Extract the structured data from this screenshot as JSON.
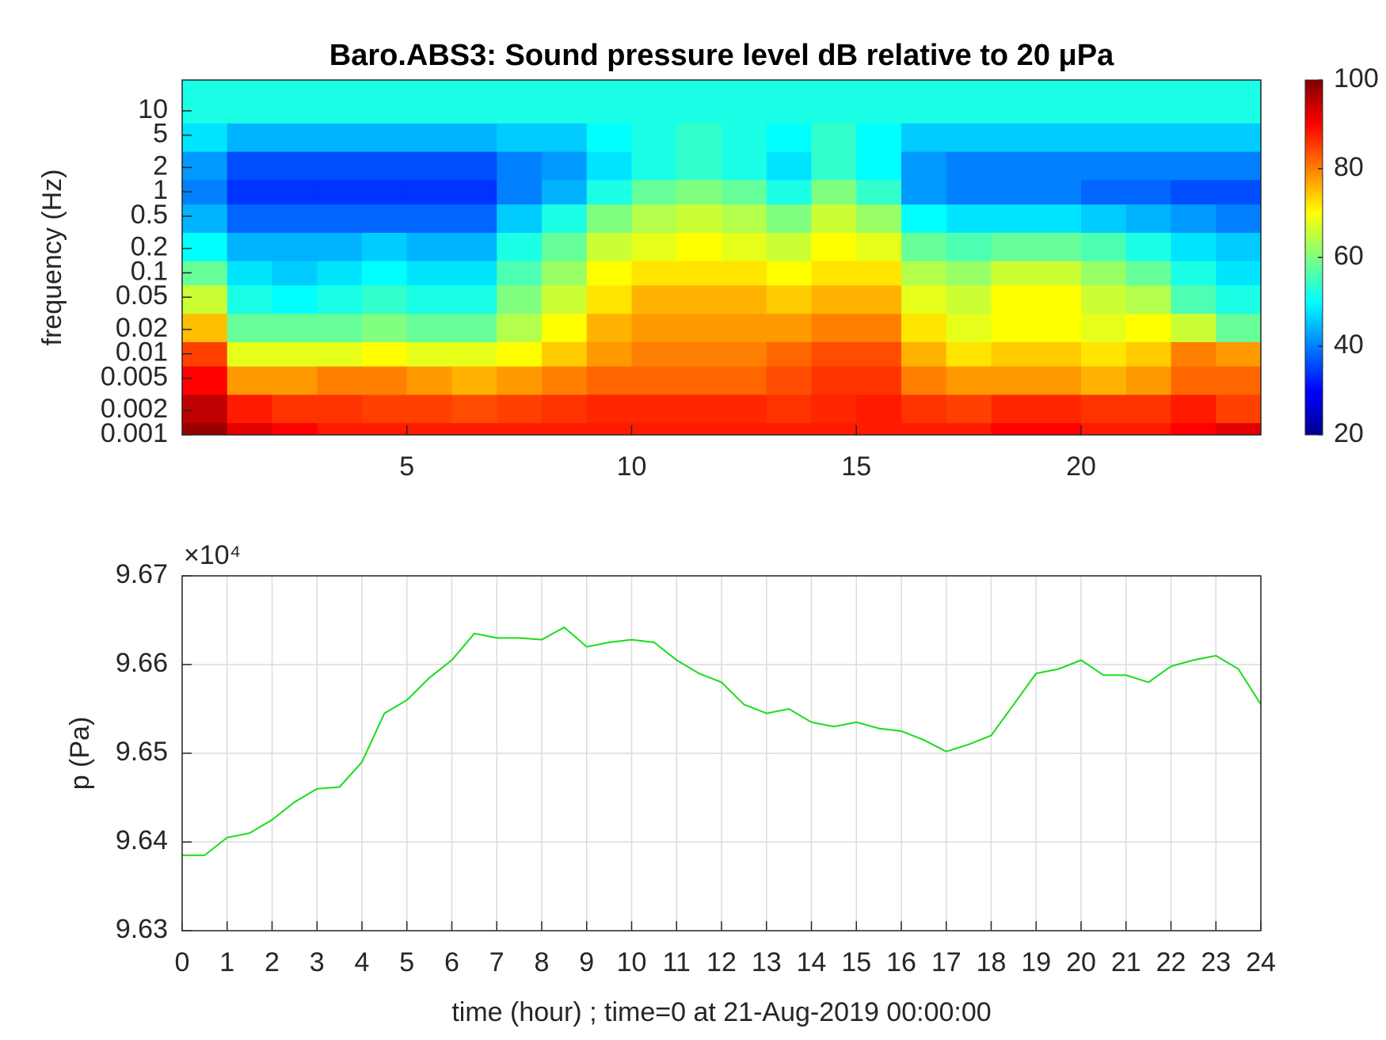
{
  "chart_data": [
    {
      "type": "heatmap",
      "title": "Baro.ABS3: Sound pressure level dB relative to 20 μPa",
      "y_label": "frequency (Hz)",
      "x": [
        0.5,
        1.5,
        2.5,
        3.5,
        4.5,
        5.5,
        6.5,
        7.5,
        8.5,
        9.5,
        10.5,
        11.5,
        12.5,
        13.5,
        14.5,
        15.5,
        16.5,
        17.5,
        18.5,
        19.5,
        20.5,
        21.5,
        22.5,
        23.5
      ],
      "y": [
        0.001,
        0.002,
        0.005,
        0.01,
        0.02,
        0.05,
        0.1,
        0.2,
        0.5,
        1,
        2,
        5,
        10
      ],
      "z": [
        [
          98,
          92,
          90,
          88,
          88,
          88,
          88,
          88,
          88,
          88,
          88,
          88,
          88,
          88,
          88,
          88,
          88,
          88,
          90,
          90,
          88,
          88,
          90,
          92
        ],
        [
          95,
          88,
          86,
          86,
          85,
          85,
          84,
          85,
          86,
          87,
          87,
          87,
          87,
          86,
          87,
          88,
          86,
          85,
          87,
          87,
          86,
          86,
          88,
          85
        ],
        [
          90,
          78,
          78,
          80,
          80,
          78,
          76,
          78,
          80,
          82,
          82,
          82,
          82,
          84,
          86,
          86,
          80,
          78,
          78,
          78,
          76,
          78,
          82,
          82
        ],
        [
          85,
          68,
          68,
          68,
          70,
          68,
          68,
          70,
          74,
          78,
          80,
          80,
          80,
          82,
          84,
          84,
          76,
          72,
          74,
          74,
          72,
          74,
          80,
          78
        ],
        [
          75,
          58,
          58,
          58,
          60,
          58,
          58,
          64,
          70,
          76,
          78,
          78,
          78,
          78,
          80,
          80,
          72,
          68,
          70,
          70,
          68,
          70,
          66,
          58
        ],
        [
          66,
          52,
          50,
          52,
          54,
          52,
          52,
          60,
          66,
          72,
          76,
          76,
          76,
          74,
          76,
          76,
          68,
          66,
          70,
          70,
          66,
          64,
          56,
          52
        ],
        [
          58,
          48,
          46,
          48,
          50,
          48,
          48,
          56,
          62,
          70,
          72,
          72,
          72,
          70,
          72,
          72,
          64,
          62,
          66,
          66,
          62,
          58,
          52,
          48
        ],
        [
          50,
          44,
          44,
          44,
          46,
          44,
          44,
          52,
          58,
          66,
          68,
          70,
          68,
          66,
          70,
          68,
          58,
          56,
          58,
          58,
          56,
          52,
          48,
          46
        ],
        [
          44,
          38,
          38,
          38,
          38,
          38,
          38,
          46,
          52,
          60,
          64,
          66,
          64,
          60,
          66,
          62,
          50,
          48,
          48,
          48,
          46,
          44,
          42,
          40
        ],
        [
          40,
          34,
          34,
          34,
          34,
          34,
          34,
          40,
          44,
          52,
          58,
          60,
          58,
          52,
          60,
          54,
          42,
          40,
          40,
          40,
          38,
          38,
          36,
          36
        ],
        [
          42,
          36,
          36,
          36,
          36,
          36,
          36,
          40,
          42,
          48,
          52,
          54,
          52,
          48,
          54,
          50,
          42,
          40,
          40,
          40,
          40,
          40,
          40,
          40
        ],
        [
          48,
          44,
          44,
          44,
          44,
          44,
          44,
          46,
          46,
          50,
          52,
          54,
          52,
          50,
          54,
          50,
          46,
          46,
          46,
          46,
          46,
          46,
          46,
          46
        ],
        [
          52,
          52,
          52,
          52,
          52,
          52,
          52,
          52,
          52,
          52,
          52,
          52,
          52,
          52,
          52,
          52,
          52,
          52,
          52,
          52,
          52,
          52,
          52,
          52
        ]
      ],
      "xlim": [
        0,
        24
      ],
      "xticks": [
        5,
        10,
        15,
        20
      ],
      "ylim": [
        0.001,
        24
      ],
      "log_y": true,
      "yticks": [
        0.001,
        0.002,
        0.005,
        0.01,
        0.02,
        0.05,
        0.1,
        0.2,
        0.5,
        1,
        2,
        5,
        10
      ],
      "colormap": "jet",
      "clim": [
        20,
        100
      ],
      "cticks": [
        20,
        40,
        60,
        80,
        100
      ]
    },
    {
      "type": "line",
      "x_label": "time (hour) ; time=0 at 21-Aug-2019 00:00:00",
      "y_label": "p (Pa)",
      "y_exponent": "×10⁴",
      "color": "#1adc1a",
      "x": [
        0,
        0.5,
        1,
        1.5,
        2,
        2.5,
        3,
        3.5,
        4,
        4.5,
        5,
        5.5,
        6,
        6.5,
        7,
        7.5,
        8,
        8.5,
        9,
        9.5,
        10,
        10.5,
        11,
        11.5,
        12,
        12.5,
        13,
        13.5,
        14,
        14.5,
        15,
        15.5,
        16,
        16.5,
        17,
        17.5,
        18,
        18.5,
        19,
        19.5,
        20,
        20.5,
        21,
        21.5,
        22,
        22.5,
        23,
        23.5,
        24
      ],
      "values": [
        9.6385,
        9.6385,
        9.6405,
        9.641,
        9.6425,
        9.6445,
        9.646,
        9.6462,
        9.649,
        9.6545,
        9.656,
        9.6585,
        9.6605,
        9.6635,
        9.663,
        9.663,
        9.6628,
        9.6642,
        9.662,
        9.6625,
        9.6628,
        9.6625,
        9.6605,
        9.659,
        9.658,
        9.6555,
        9.6545,
        9.655,
        9.6535,
        9.653,
        9.6535,
        9.6528,
        9.6525,
        9.6515,
        9.6502,
        9.651,
        9.652,
        9.6555,
        9.659,
        9.6595,
        9.6605,
        9.6588,
        9.6588,
        9.658,
        9.6598,
        9.6605,
        9.661,
        9.6595,
        9.6555
      ],
      "xlim": [
        0,
        24
      ],
      "xticks": [
        0,
        1,
        2,
        3,
        4,
        5,
        6,
        7,
        8,
        9,
        10,
        11,
        12,
        13,
        14,
        15,
        16,
        17,
        18,
        19,
        20,
        21,
        22,
        23,
        24
      ],
      "ylim": [
        9.63,
        9.67
      ],
      "yticks": [
        9.63,
        9.64,
        9.65,
        9.66,
        9.67
      ],
      "grid": true
    }
  ]
}
